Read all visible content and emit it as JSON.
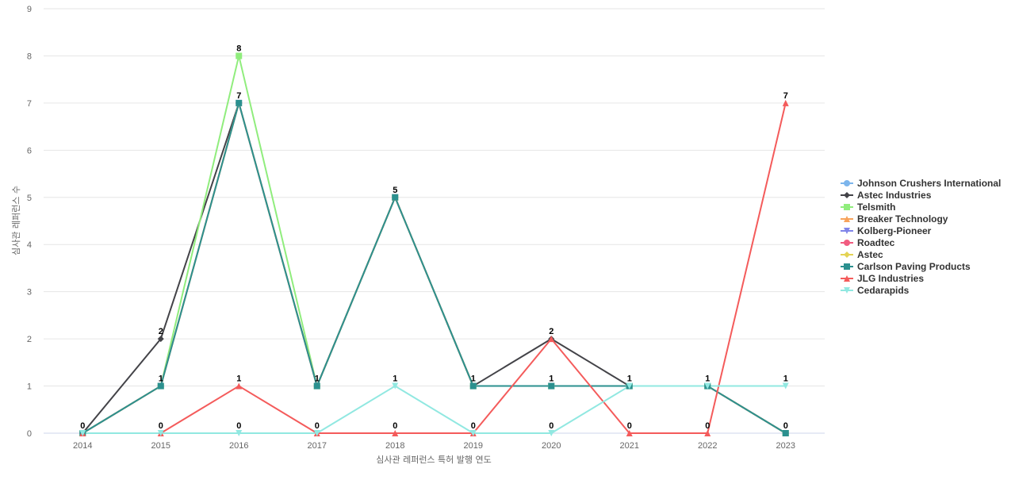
{
  "chart_data": {
    "type": "line",
    "title": "",
    "xlabel": "심사관 레퍼런스 특허 발행 연도",
    "ylabel": "심사관 레퍼런스 수",
    "ylim": [
      0,
      9
    ],
    "yticks": [
      "0",
      "1",
      "2",
      "3",
      "4",
      "5",
      "6",
      "7",
      "8",
      "9"
    ],
    "categories": [
      "2014",
      "2015",
      "2016",
      "2017",
      "2018",
      "2019",
      "2020",
      "2021",
      "2022",
      "2023"
    ],
    "grid": true,
    "legend_position": "right",
    "series": [
      {
        "name": "Johnson Crushers International",
        "color": "#7cb5ec",
        "marker": "circle",
        "values": [
          0,
          1,
          7,
          1,
          5,
          1,
          1,
          1,
          1,
          0
        ]
      },
      {
        "name": "Astec Industries",
        "color": "#434348",
        "marker": "diamond",
        "values": [
          0,
          2,
          7,
          1,
          5,
          1,
          2,
          1,
          1,
          0
        ]
      },
      {
        "name": "Telsmith",
        "color": "#90ed7d",
        "marker": "square",
        "values": [
          0,
          1,
          8,
          1,
          5,
          1,
          1,
          1,
          1,
          0
        ]
      },
      {
        "name": "Breaker Technology",
        "color": "#f7a35c",
        "marker": "triangle",
        "values": [
          0,
          1,
          7,
          1,
          5,
          1,
          1,
          1,
          1,
          0
        ]
      },
      {
        "name": "Kolberg-Pioneer",
        "color": "#8085e9",
        "marker": "triangle-down",
        "values": [
          0,
          1,
          7,
          1,
          5,
          1,
          1,
          1,
          1,
          0
        ]
      },
      {
        "name": "Roadtec",
        "color": "#f15c80",
        "marker": "circle",
        "values": [
          0,
          1,
          7,
          1,
          5,
          1,
          1,
          1,
          1,
          0
        ]
      },
      {
        "name": "Astec",
        "color": "#e4d354",
        "marker": "diamond",
        "values": [
          0,
          1,
          7,
          1,
          5,
          1,
          1,
          1,
          1,
          0
        ]
      },
      {
        "name": "Carlson Paving Products",
        "color": "#2b908f",
        "marker": "square",
        "values": [
          0,
          1,
          7,
          1,
          5,
          1,
          1,
          1,
          1,
          0
        ]
      },
      {
        "name": "JLG Industries",
        "color": "#f45b5b",
        "marker": "triangle",
        "values": [
          0,
          0,
          1,
          0,
          0,
          0,
          2,
          0,
          0,
          7
        ]
      },
      {
        "name": "Cedarapids",
        "color": "#91e8e1",
        "marker": "triangle-down",
        "values": [
          0,
          0,
          0,
          0,
          1,
          0,
          0,
          1,
          1,
          1
        ]
      }
    ],
    "data_labels": [
      {
        "category": "2014",
        "value": "0"
      },
      {
        "category": "2015",
        "value": "2"
      },
      {
        "category": "2016",
        "value": "8"
      },
      {
        "category": "2016",
        "value": "7"
      },
      {
        "category": "2018",
        "value": "5"
      },
      {
        "category": "2020",
        "value": "2"
      },
      {
        "category": "2023",
        "value": "7"
      },
      {
        "category": "2015",
        "value": "1"
      },
      {
        "category": "2016",
        "value": "1"
      },
      {
        "category": "2017",
        "value": "1"
      },
      {
        "category": "2018",
        "value": "1"
      },
      {
        "category": "2019",
        "value": "1"
      },
      {
        "category": "2020",
        "value": "1"
      },
      {
        "category": "2021",
        "value": "1"
      },
      {
        "category": "2022",
        "value": "1"
      },
      {
        "category": "2023",
        "value": "1"
      },
      {
        "category": "2015",
        "value": "0"
      },
      {
        "category": "2016",
        "value": "0"
      },
      {
        "category": "2017",
        "value": "0"
      },
      {
        "category": "2018",
        "value": "0"
      },
      {
        "category": "2019",
        "value": "0"
      },
      {
        "category": "2020",
        "value": "0"
      },
      {
        "category": "2021",
        "value": "0"
      },
      {
        "category": "2022",
        "value": "0"
      },
      {
        "category": "2023",
        "value": "0"
      }
    ]
  }
}
